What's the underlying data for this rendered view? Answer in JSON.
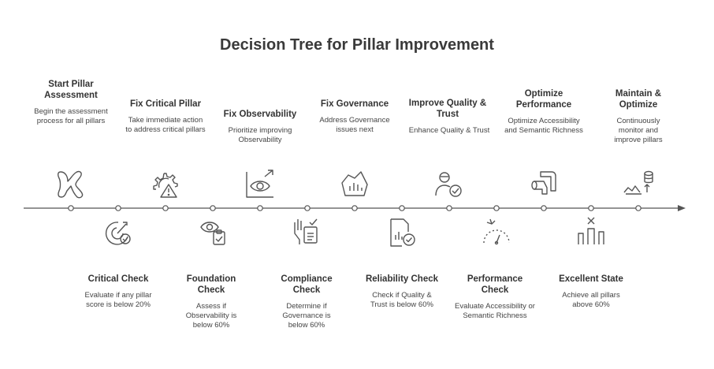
{
  "title": "Decision Tree for Pillar Improvement",
  "top_stages": [
    {
      "title": "Start Pillar Assessment",
      "desc": "Begin the assessment process for all pillars",
      "icon": "start-icon"
    },
    {
      "title": "Fix Critical Pillar",
      "desc": "Take immediate action to address critical pillars",
      "icon": "gear-warning-icon"
    },
    {
      "title": "Fix Observability",
      "desc": "Prioritize improving Observability",
      "icon": "eye-chart-icon"
    },
    {
      "title": "Fix Governance",
      "desc": "Address Governance issues next",
      "icon": "governance-chart-icon"
    },
    {
      "title": "Improve Quality & Trust",
      "desc": "Enhance Quality & Trust",
      "icon": "user-check-icon"
    },
    {
      "title": "Optimize Performance",
      "desc": "Optimize Accessibility and Semantic Richness",
      "icon": "pipe-icon"
    },
    {
      "title": "Maintain & Optimize",
      "desc": "Continuously monitor and improve pillars",
      "icon": "database-growth-icon"
    }
  ],
  "bottom_stages": [
    {
      "title": "Critical Check",
      "desc": "Evaluate if any pillar score is below 20%",
      "icon": "target-check-icon"
    },
    {
      "title": "Foundation Check",
      "desc": "Assess if Observability is below 60%",
      "icon": "eye-clipboard-icon"
    },
    {
      "title": "Compliance Check",
      "desc": "Determine if Governance is below 60%",
      "icon": "hand-document-icon"
    },
    {
      "title": "Reliability Check",
      "desc": "Check if Quality & Trust is below 60%",
      "icon": "document-check-icon"
    },
    {
      "title": "Performance Check",
      "desc": "Evaluate Accessibility or Semantic Richness",
      "icon": "gauge-icon"
    },
    {
      "title": "Excellent State",
      "desc": "Achieve all pillars above 60%",
      "icon": "columns-icon"
    }
  ]
}
